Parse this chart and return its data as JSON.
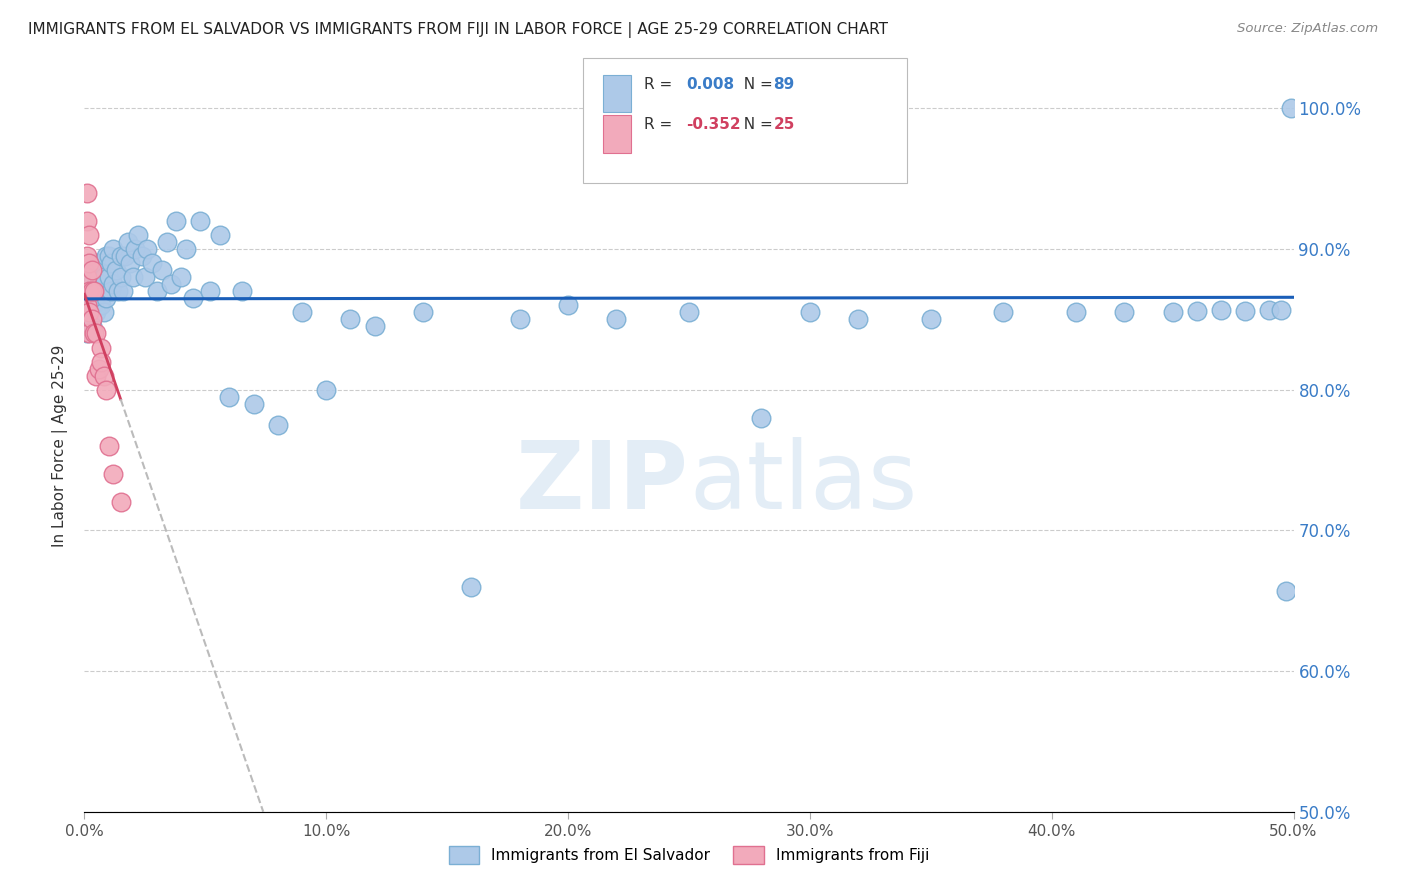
{
  "title": "IMMIGRANTS FROM EL SALVADOR VS IMMIGRANTS FROM FIJI IN LABOR FORCE | AGE 25-29 CORRELATION CHART",
  "source": "Source: ZipAtlas.com",
  "ylabel": "In Labor Force | Age 25-29",
  "xlim": [
    0.0,
    0.5
  ],
  "ylim": [
    0.5,
    1.02
  ],
  "xtick_labels": [
    "0.0%",
    "10.0%",
    "20.0%",
    "30.0%",
    "40.0%",
    "50.0%"
  ],
  "xtick_vals": [
    0.0,
    0.1,
    0.2,
    0.3,
    0.4,
    0.5
  ],
  "ytick_labels": [
    "50.0%",
    "60.0%",
    "70.0%",
    "80.0%",
    "90.0%",
    "100.0%"
  ],
  "ytick_vals": [
    0.5,
    0.6,
    0.7,
    0.8,
    0.9,
    1.0
  ],
  "el_salvador_color": "#adc9e8",
  "fiji_color": "#f2aabb",
  "el_salvador_edge": "#7bafd4",
  "fiji_edge": "#e07090",
  "regression_blue_color": "#1a5eb8",
  "regression_pink_color": "#d04060",
  "regression_dashed_color": "#bbbbbb",
  "R_el_salvador": 0.008,
  "N_el_salvador": 89,
  "R_fiji": -0.352,
  "N_fiji": 25,
  "legend_label_1": "Immigrants from El Salvador",
  "legend_label_2": "Immigrants from Fiji",
  "watermark": "ZIPatlas",
  "el_salvador_x": [
    0.001,
    0.001,
    0.001,
    0.002,
    0.002,
    0.002,
    0.002,
    0.003,
    0.003,
    0.003,
    0.003,
    0.004,
    0.004,
    0.004,
    0.005,
    0.005,
    0.005,
    0.006,
    0.006,
    0.006,
    0.007,
    0.007,
    0.007,
    0.008,
    0.008,
    0.008,
    0.009,
    0.009,
    0.01,
    0.01,
    0.011,
    0.011,
    0.012,
    0.012,
    0.013,
    0.014,
    0.015,
    0.015,
    0.016,
    0.017,
    0.018,
    0.019,
    0.02,
    0.021,
    0.022,
    0.024,
    0.025,
    0.026,
    0.028,
    0.03,
    0.032,
    0.034,
    0.036,
    0.038,
    0.04,
    0.042,
    0.045,
    0.048,
    0.052,
    0.056,
    0.06,
    0.065,
    0.07,
    0.08,
    0.09,
    0.1,
    0.11,
    0.12,
    0.14,
    0.16,
    0.18,
    0.2,
    0.22,
    0.25,
    0.28,
    0.3,
    0.32,
    0.35,
    0.38,
    0.41,
    0.43,
    0.45,
    0.46,
    0.47,
    0.48,
    0.49,
    0.495,
    0.497,
    0.499
  ],
  "el_salvador_y": [
    0.86,
    0.84,
    0.87,
    0.855,
    0.875,
    0.85,
    0.865,
    0.88,
    0.86,
    0.845,
    0.875,
    0.86,
    0.885,
    0.87,
    0.855,
    0.875,
    0.89,
    0.87,
    0.86,
    0.88,
    0.875,
    0.86,
    0.89,
    0.855,
    0.87,
    0.88,
    0.865,
    0.895,
    0.88,
    0.895,
    0.87,
    0.89,
    0.875,
    0.9,
    0.885,
    0.87,
    0.895,
    0.88,
    0.87,
    0.895,
    0.905,
    0.89,
    0.88,
    0.9,
    0.91,
    0.895,
    0.88,
    0.9,
    0.89,
    0.87,
    0.885,
    0.905,
    0.875,
    0.92,
    0.88,
    0.9,
    0.865,
    0.92,
    0.87,
    0.91,
    0.795,
    0.87,
    0.79,
    0.775,
    0.855,
    0.8,
    0.85,
    0.845,
    0.855,
    0.66,
    0.85,
    0.86,
    0.85,
    0.855,
    0.78,
    0.855,
    0.85,
    0.85,
    0.855,
    0.855,
    0.855,
    0.855,
    0.856,
    0.857,
    0.856,
    0.857,
    0.857,
    0.657,
    1.0
  ],
  "fiji_x": [
    0.001,
    0.001,
    0.001,
    0.001,
    0.001,
    0.002,
    0.002,
    0.002,
    0.002,
    0.002,
    0.003,
    0.003,
    0.003,
    0.004,
    0.004,
    0.005,
    0.005,
    0.006,
    0.007,
    0.007,
    0.008,
    0.009,
    0.01,
    0.012,
    0.015
  ],
  "fiji_y": [
    0.94,
    0.92,
    0.895,
    0.88,
    0.86,
    0.91,
    0.89,
    0.87,
    0.855,
    0.84,
    0.885,
    0.87,
    0.85,
    0.87,
    0.84,
    0.84,
    0.81,
    0.815,
    0.83,
    0.82,
    0.81,
    0.8,
    0.76,
    0.74,
    0.72
  ]
}
